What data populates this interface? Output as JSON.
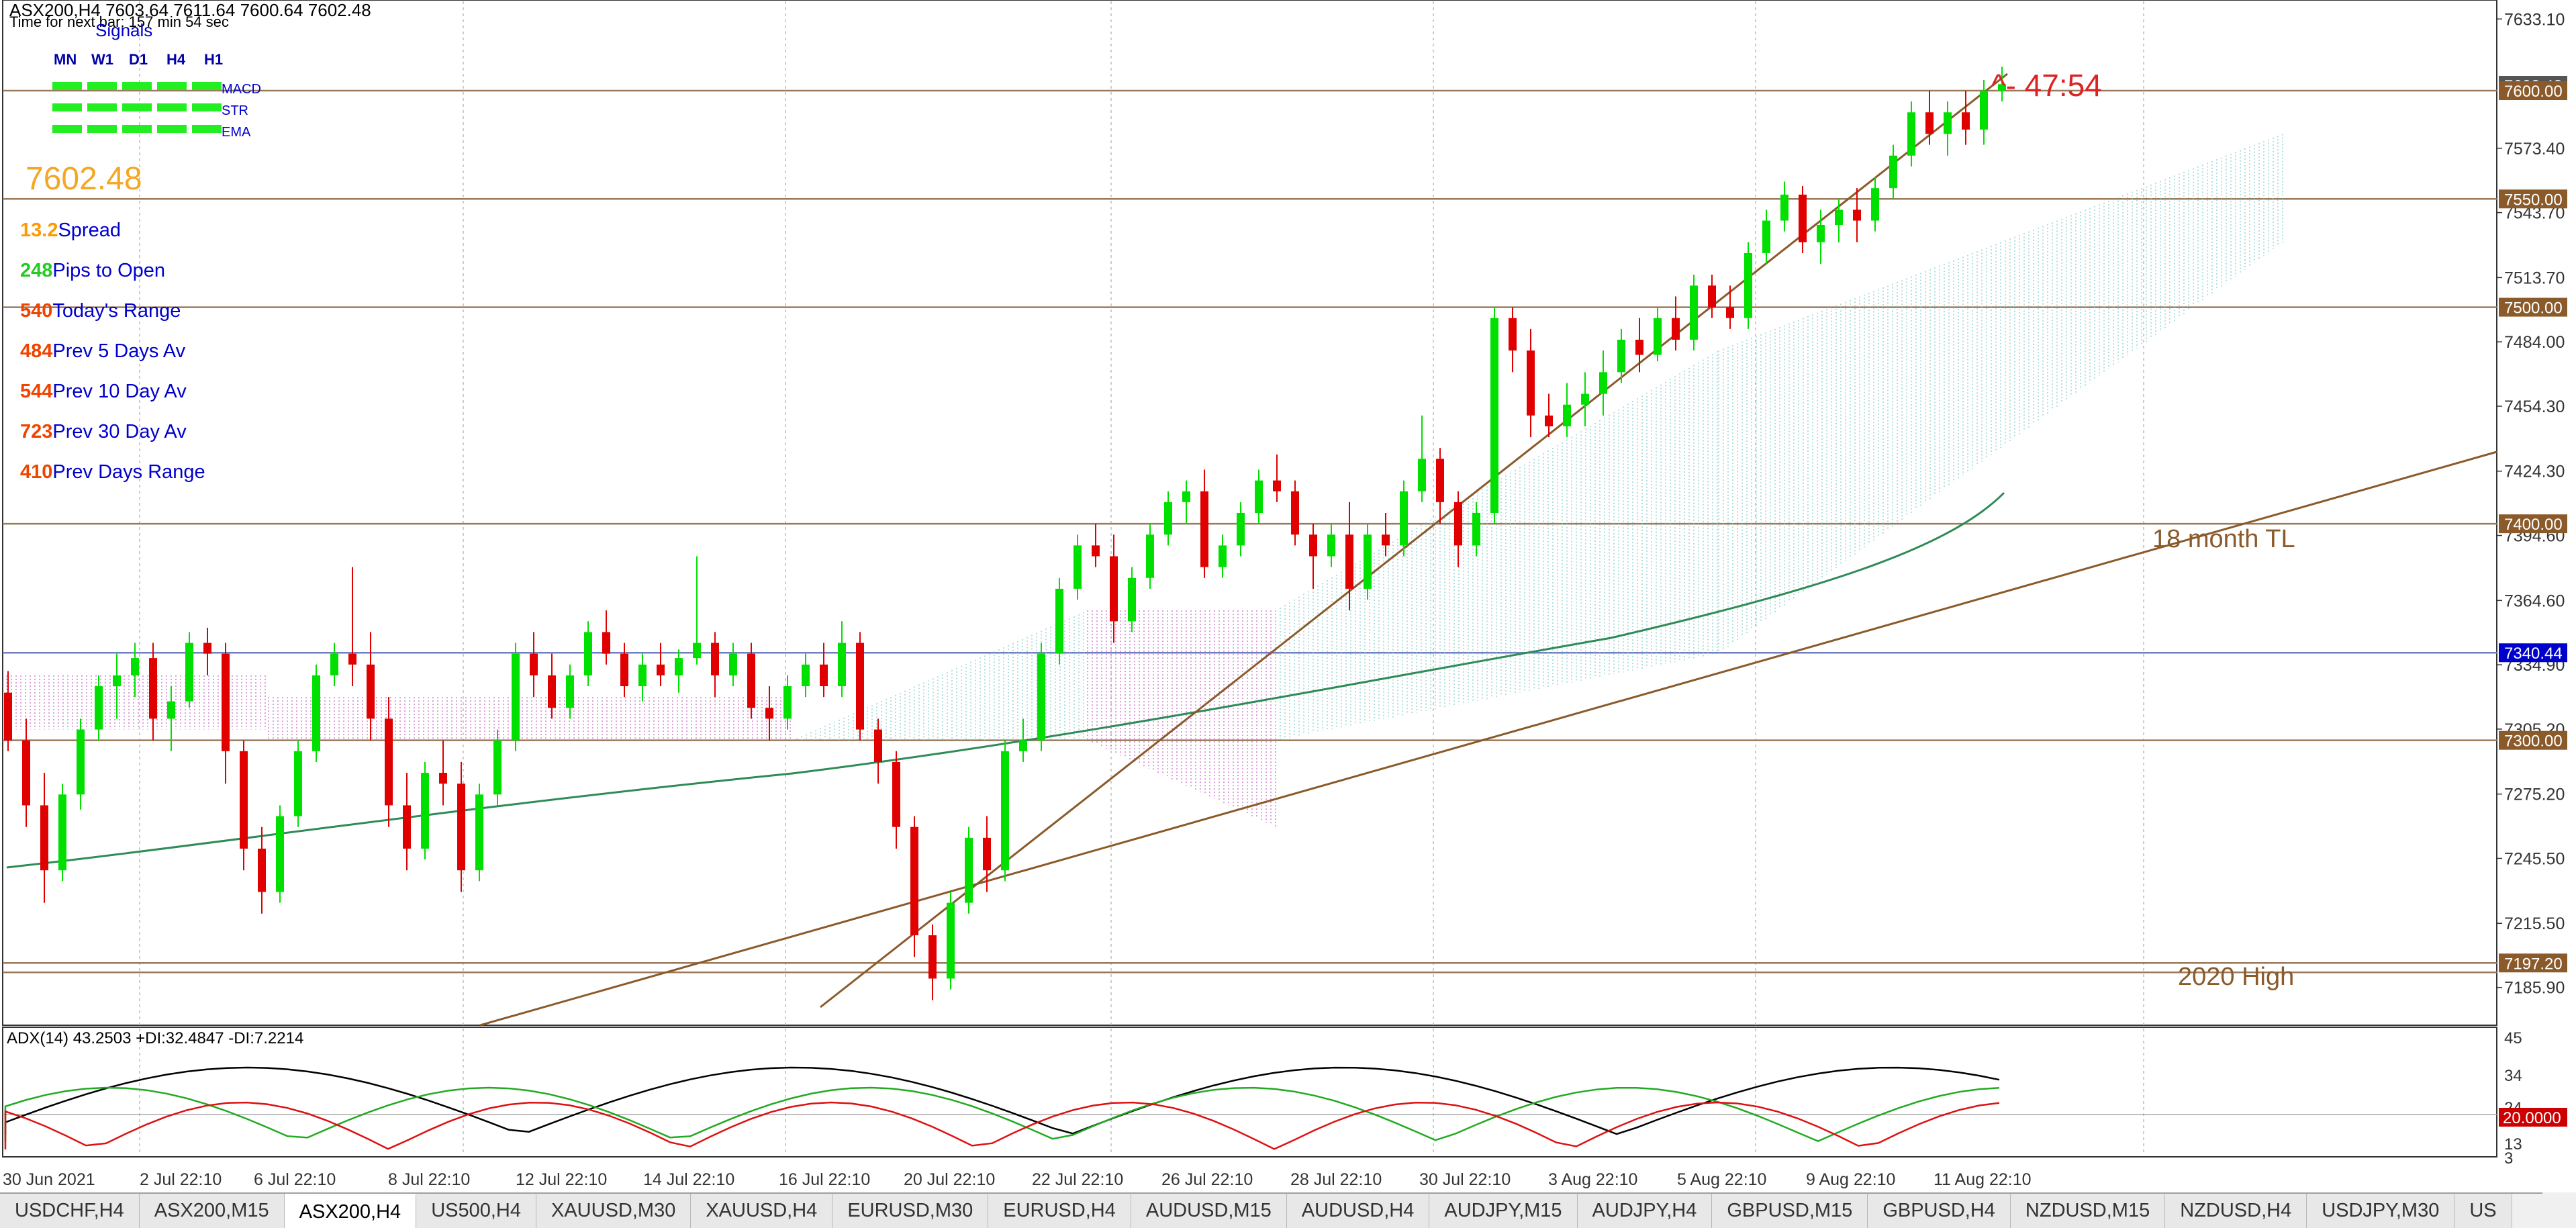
{
  "colors": {
    "bull": "#00e000",
    "bear": "#e00000",
    "level": "#8b5a2b",
    "ema": "#2e8b57",
    "cloud_bull": "#7ec8c8",
    "cloud_bear": "#c060c0",
    "adx": "#000000",
    "plus_di": "#22aa22",
    "minus_di": "#dd1111"
  },
  "header": {
    "symbol_line": "ASX200,H4  7603.64 7611.64 7600.64 7602.48",
    "time_to_bar": "Time for next bar: 157 min 54 sec",
    "signals_title": "Signals"
  },
  "signals": {
    "timeframes": [
      "MN",
      "W1",
      "D1",
      "H4",
      "H1"
    ],
    "indicators": [
      "MACD",
      "STR",
      "EMA"
    ]
  },
  "info_panel": {
    "price": "7602.48",
    "rows": [
      {
        "value": "13.2",
        "label": "Spread",
        "color": "#ff9900"
      },
      {
        "value": "248",
        "label": "Pips to Open",
        "color": "#22cc22"
      },
      {
        "value": "540",
        "label": "Today's Range",
        "color": "#ee4400"
      },
      {
        "value": "484",
        "label": "Prev 5 Days Av",
        "color": "#ee4400"
      },
      {
        "value": "544",
        "label": "Prev 10 Day Av",
        "color": "#ee4400"
      },
      {
        "value": "723",
        "label": "Prev 30 Day Av",
        "color": "#ee4400"
      },
      {
        "value": "410",
        "label": "Prev Days Range",
        "color": "#ee4400"
      }
    ]
  },
  "countdown": "^- 47:54",
  "annotations": {
    "trendline_label": "18 month TL",
    "high_label": "2020 High"
  },
  "price_axis": [
    "7633.10",
    "7573.40",
    "7543.70",
    "7513.70",
    "7484.00",
    "7454.30",
    "7424.30",
    "7394.60",
    "7364.60",
    "7334.90",
    "7305.20",
    "7275.20",
    "7245.50",
    "7215.50",
    "7185.90"
  ],
  "levels": [
    {
      "label": "7602.48",
      "price": 7602.48,
      "tag_color": "#555555"
    },
    {
      "label": "7600.00",
      "price": 7600,
      "tag_color": "#8b5a2b"
    },
    {
      "label": "7550.00",
      "price": 7550,
      "tag_color": "#8b5a2b"
    },
    {
      "label": "7500.00",
      "price": 7500,
      "tag_color": "#8b5a2b"
    },
    {
      "label": "7400.00",
      "price": 7400,
      "tag_color": "#8b5a2b"
    },
    {
      "label": "7340.44",
      "price": 7340.44,
      "tag_color": "#0000cc"
    },
    {
      "label": "7300.00",
      "price": 7300,
      "tag_color": "#8b5a2b"
    },
    {
      "label": "7197.20",
      "price": 7197.2,
      "tag_color": "#8b5a2b"
    }
  ],
  "adx": {
    "label": "ADX(14) 43.2503 +DI:32.4847 -DI:7.2214",
    "axis": [
      "45",
      "34",
      "24",
      "20.0000",
      "13",
      "3"
    ]
  },
  "time_axis": [
    "30 Jun 2021",
    "2 Jul 22:10",
    "6 Jul 22:10",
    "8 Jul 22:10",
    "12 Jul 22:10",
    "14 Jul 22:10",
    "16 Jul 22:10",
    "20 Jul 22:10",
    "22 Jul 22:10",
    "26 Jul 22:10",
    "28 Jul 22:10",
    "30 Jul 22:10",
    "3 Aug 22:10",
    "5 Aug 22:10",
    "9 Aug 22:10",
    "11 Aug 22:10"
  ],
  "tabs": [
    {
      "label": "USDCHF,H4",
      "active": false
    },
    {
      "label": "ASX200,M15",
      "active": false
    },
    {
      "label": "ASX200,H4",
      "active": true
    },
    {
      "label": "US500,H4",
      "active": false
    },
    {
      "label": "XAUUSD,M30",
      "active": false
    },
    {
      "label": "XAUUSD,H4",
      "active": false
    },
    {
      "label": "EURUSD,M30",
      "active": false
    },
    {
      "label": "EURUSD,H4",
      "active": false
    },
    {
      "label": "AUDUSD,M15",
      "active": false
    },
    {
      "label": "AUDUSD,H4",
      "active": false
    },
    {
      "label": "AUDJPY,M15",
      "active": false
    },
    {
      "label": "AUDJPY,H4",
      "active": false
    },
    {
      "label": "GBPUSD,M15",
      "active": false
    },
    {
      "label": "GBPUSD,H4",
      "active": false
    },
    {
      "label": "NZDUSD,M15",
      "active": false
    },
    {
      "label": "NZDUSD,H4",
      "active": false
    },
    {
      "label": "USDJPY,M30",
      "active": false
    },
    {
      "label": "US",
      "active": false
    }
  ],
  "chart_data": {
    "type": "candlestick",
    "symbol": "ASX200",
    "timeframe": "H4",
    "last_price": 7602.48,
    "price_range": [
      7170,
      7640
    ],
    "candles": [
      [
        7322,
        7332,
        7295,
        7300
      ],
      [
        7300,
        7310,
        7260,
        7270
      ],
      [
        7270,
        7285,
        7225,
        7240
      ],
      [
        7240,
        7280,
        7235,
        7275
      ],
      [
        7275,
        7310,
        7268,
        7305
      ],
      [
        7305,
        7330,
        7300,
        7325
      ],
      [
        7325,
        7340,
        7310,
        7330
      ],
      [
        7330,
        7345,
        7320,
        7338
      ],
      [
        7338,
        7345,
        7300,
        7310
      ],
      [
        7310,
        7325,
        7295,
        7318
      ],
      [
        7318,
        7350,
        7315,
        7345
      ],
      [
        7345,
        7352,
        7330,
        7340
      ],
      [
        7340,
        7345,
        7280,
        7295
      ],
      [
        7295,
        7300,
        7240,
        7250
      ],
      [
        7250,
        7260,
        7220,
        7230
      ],
      [
        7230,
        7270,
        7225,
        7265
      ],
      [
        7265,
        7300,
        7260,
        7295
      ],
      [
        7295,
        7335,
        7290,
        7330
      ],
      [
        7330,
        7345,
        7325,
        7340
      ],
      [
        7340,
        7380,
        7325,
        7335
      ],
      [
        7335,
        7350,
        7300,
        7310
      ],
      [
        7310,
        7320,
        7260,
        7270
      ],
      [
        7270,
        7285,
        7240,
        7250
      ],
      [
        7250,
        7290,
        7245,
        7285
      ],
      [
        7285,
        7300,
        7270,
        7280
      ],
      [
        7280,
        7290,
        7230,
        7240
      ],
      [
        7240,
        7280,
        7235,
        7275
      ],
      [
        7275,
        7305,
        7270,
        7300
      ],
      [
        7300,
        7345,
        7295,
        7340
      ],
      [
        7340,
        7350,
        7320,
        7330
      ],
      [
        7330,
        7340,
        7310,
        7315
      ],
      [
        7315,
        7335,
        7310,
        7330
      ],
      [
        7330,
        7355,
        7325,
        7350
      ],
      [
        7350,
        7360,
        7335,
        7340
      ],
      [
        7340,
        7345,
        7320,
        7325
      ],
      [
        7325,
        7340,
        7318,
        7335
      ],
      [
        7335,
        7345,
        7325,
        7330
      ],
      [
        7330,
        7342,
        7322,
        7338
      ],
      [
        7338,
        7385,
        7335,
        7345
      ],
      [
        7345,
        7350,
        7320,
        7330
      ],
      [
        7330,
        7345,
        7325,
        7340
      ],
      [
        7340,
        7345,
        7310,
        7315
      ],
      [
        7315,
        7325,
        7300,
        7310
      ],
      [
        7310,
        7330,
        7305,
        7325
      ],
      [
        7325,
        7340,
        7320,
        7335
      ],
      [
        7335,
        7345,
        7320,
        7325
      ],
      [
        7325,
        7355,
        7320,
        7345
      ],
      [
        7345,
        7350,
        7300,
        7305
      ],
      [
        7305,
        7310,
        7280,
        7290
      ],
      [
        7290,
        7295,
        7250,
        7260
      ],
      [
        7260,
        7265,
        7200,
        7210
      ],
      [
        7210,
        7215,
        7180,
        7190
      ],
      [
        7190,
        7230,
        7185,
        7225
      ],
      [
        7225,
        7260,
        7220,
        7255
      ],
      [
        7255,
        7265,
        7230,
        7240
      ],
      [
        7240,
        7300,
        7235,
        7295
      ],
      [
        7295,
        7310,
        7290,
        7300
      ],
      [
        7300,
        7345,
        7295,
        7340
      ],
      [
        7340,
        7375,
        7335,
        7370
      ],
      [
        7370,
        7395,
        7365,
        7390
      ],
      [
        7390,
        7400,
        7380,
        7385
      ],
      [
        7385,
        7395,
        7345,
        7355
      ],
      [
        7355,
        7380,
        7350,
        7375
      ],
      [
        7375,
        7400,
        7370,
        7395
      ],
      [
        7395,
        7415,
        7390,
        7410
      ],
      [
        7410,
        7420,
        7400,
        7415
      ],
      [
        7415,
        7425,
        7375,
        7380
      ],
      [
        7380,
        7395,
        7375,
        7390
      ],
      [
        7390,
        7410,
        7385,
        7405
      ],
      [
        7405,
        7425,
        7400,
        7420
      ],
      [
        7420,
        7432,
        7410,
        7415
      ],
      [
        7415,
        7420,
        7390,
        7395
      ],
      [
        7395,
        7400,
        7370,
        7385
      ],
      [
        7385,
        7400,
        7380,
        7395
      ],
      [
        7395,
        7410,
        7360,
        7370
      ],
      [
        7370,
        7400,
        7365,
        7395
      ],
      [
        7395,
        7405,
        7385,
        7390
      ],
      [
        7390,
        7420,
        7385,
        7415
      ],
      [
        7415,
        7450,
        7410,
        7430
      ],
      [
        7430,
        7435,
        7400,
        7410
      ],
      [
        7410,
        7415,
        7380,
        7390
      ],
      [
        7390,
        7410,
        7385,
        7405
      ],
      [
        7405,
        7500,
        7400,
        7495
      ],
      [
        7495,
        7500,
        7470,
        7480
      ],
      [
        7480,
        7490,
        7440,
        7450
      ],
      [
        7450,
        7460,
        7440,
        7445
      ],
      [
        7445,
        7465,
        7440,
        7455
      ],
      [
        7455,
        7470,
        7445,
        7460
      ],
      [
        7460,
        7480,
        7450,
        7470
      ],
      [
        7470,
        7490,
        7465,
        7485
      ],
      [
        7485,
        7495,
        7470,
        7478
      ],
      [
        7478,
        7500,
        7475,
        7495
      ],
      [
        7495,
        7505,
        7480,
        7485
      ],
      [
        7485,
        7515,
        7480,
        7510
      ],
      [
        7510,
        7515,
        7495,
        7500
      ],
      [
        7500,
        7510,
        7490,
        7495
      ],
      [
        7495,
        7530,
        7490,
        7525
      ],
      [
        7525,
        7545,
        7520,
        7540
      ],
      [
        7540,
        7558,
        7535,
        7552
      ],
      [
        7552,
        7556,
        7525,
        7530
      ],
      [
        7530,
        7545,
        7520,
        7538
      ],
      [
        7538,
        7550,
        7530,
        7545
      ],
      [
        7545,
        7555,
        7530,
        7540
      ],
      [
        7540,
        7560,
        7535,
        7555
      ],
      [
        7555,
        7575,
        7550,
        7570
      ],
      [
        7570,
        7595,
        7565,
        7590
      ],
      [
        7590,
        7600,
        7575,
        7580
      ],
      [
        7580,
        7595,
        7570,
        7590
      ],
      [
        7590,
        7600,
        7575,
        7582
      ],
      [
        7582,
        7605,
        7575,
        7600
      ],
      [
        7600,
        7611,
        7595,
        7603
      ]
    ]
  }
}
